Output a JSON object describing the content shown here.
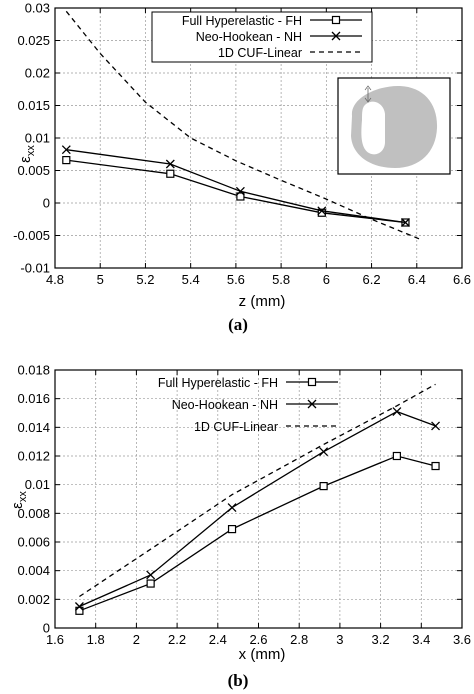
{
  "chart_data": [
    {
      "type": "line",
      "panel_label": "(a)",
      "xlabel": "z (mm)",
      "ylabel_main": "ε",
      "ylabel_sub": "xx",
      "xlim": [
        4.8,
        6.6
      ],
      "ylim": [
        -0.01,
        0.03
      ],
      "xticks": [
        4.8,
        5,
        5.2,
        5.4,
        5.6,
        5.8,
        6,
        6.2,
        6.4,
        6.6
      ],
      "yticks": [
        -0.01,
        -0.005,
        0,
        0.005,
        0.01,
        0.015,
        0.02,
        0.025,
        0.03
      ],
      "xtick_labels": [
        "4.8",
        "5",
        "5.2",
        "5.4",
        "5.6",
        "5.8",
        "6",
        "6.2",
        "6.4",
        "6.6"
      ],
      "ytick_labels": [
        "-0.01",
        "-0.005",
        "0",
        "0.005",
        "0.01",
        "0.015",
        "0.02",
        "0.025",
        "0.03"
      ],
      "grid": true,
      "legend_position": "top-right",
      "inset": "cross-section-image",
      "series": [
        {
          "name": "Full Hyperelastic - FH",
          "marker": "square",
          "style": "solid",
          "x": [
            4.85,
            5.31,
            5.62,
            5.98,
            6.35
          ],
          "y": [
            0.0066,
            0.0045,
            0.001,
            -0.0015,
            -0.003
          ]
        },
        {
          "name": "Neo-Hookean - NH",
          "marker": "cross",
          "style": "solid",
          "x": [
            4.85,
            5.31,
            5.62,
            5.98,
            6.35
          ],
          "y": [
            0.0082,
            0.006,
            0.0018,
            -0.0012,
            -0.003
          ]
        },
        {
          "name": "1D CUF-Linear",
          "marker": "none",
          "style": "dashed",
          "x": [
            4.85,
            5.0,
            5.2,
            5.4,
            5.6,
            5.8,
            6.0,
            6.2,
            6.41
          ],
          "y": [
            0.0295,
            0.023,
            0.0155,
            0.01,
            0.0065,
            0.0035,
            0.0006,
            -0.0025,
            -0.0055
          ]
        }
      ]
    },
    {
      "type": "line",
      "panel_label": "(b)",
      "xlabel": "x (mm)",
      "ylabel_main": "ε",
      "ylabel_sub": "xx",
      "xlim": [
        1.6,
        3.6
      ],
      "ylim": [
        0,
        0.018
      ],
      "xticks": [
        1.6,
        1.8,
        2,
        2.2,
        2.4,
        2.6,
        2.8,
        3,
        3.2,
        3.4,
        3.6
      ],
      "yticks": [
        0,
        0.002,
        0.004,
        0.006,
        0.008,
        0.01,
        0.012,
        0.014,
        0.016,
        0.018
      ],
      "xtick_labels": [
        "1.6",
        "1.8",
        "2",
        "2.2",
        "2.4",
        "2.6",
        "2.8",
        "3",
        "3.2",
        "3.4",
        "3.6"
      ],
      "ytick_labels": [
        "0",
        "0.002",
        "0.004",
        "0.006",
        "0.008",
        "0.01",
        "0.012",
        "0.014",
        "0.016",
        "0.018"
      ],
      "grid": true,
      "legend_position": "top-left",
      "series": [
        {
          "name": "Full Hyperelastic - FH",
          "marker": "square",
          "style": "solid",
          "x": [
            1.72,
            2.07,
            2.47,
            2.92,
            3.28,
            3.47
          ],
          "y": [
            0.0012,
            0.0031,
            0.0069,
            0.0099,
            0.012,
            0.0113
          ]
        },
        {
          "name": "Neo-Hookean - NH",
          "marker": "cross",
          "style": "solid",
          "x": [
            1.72,
            2.07,
            2.47,
            2.92,
            3.28,
            3.47
          ],
          "y": [
            0.0015,
            0.0037,
            0.0084,
            0.0123,
            0.0151,
            0.0141
          ]
        },
        {
          "name": "1D CUF-Linear",
          "marker": "none",
          "style": "dashed",
          "x": [
            1.72,
            2.07,
            2.47,
            2.92,
            3.28,
            3.47
          ],
          "y": [
            0.0022,
            0.0055,
            0.0093,
            0.0128,
            0.0155,
            0.017
          ]
        }
      ]
    }
  ]
}
